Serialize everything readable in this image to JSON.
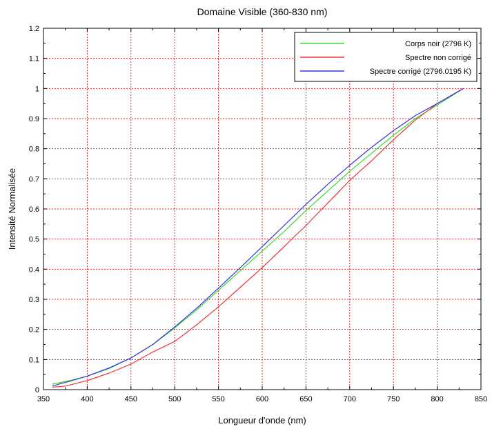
{
  "chart_data": {
    "type": "line",
    "title": "Domaine Visible (360-830 nm)",
    "xlabel": "Longueur d'onde (nm)",
    "ylabel": "Intensité Normalisée",
    "xlim": [
      350,
      850
    ],
    "ylim": [
      0,
      1.2
    ],
    "xticks": [
      "350",
      "400",
      "450",
      "500",
      "550",
      "600",
      "650",
      "700",
      "750",
      "800",
      "850"
    ],
    "yticks": [
      "0",
      "0.1",
      "0.2",
      "0.3",
      "0.4",
      "0.5",
      "0.6",
      "0.7",
      "0.8",
      "0.9",
      "1",
      "1.1",
      "1.2"
    ],
    "grid": true,
    "legend_position": "top-right",
    "series": [
      {
        "name": "Corps noir (2796 K)",
        "color": "#33dd33",
        "x": [
          360,
          380,
          400,
          425,
          450,
          475,
          500,
          525,
          550,
          575,
          600,
          625,
          650,
          675,
          700,
          725,
          750,
          775,
          800,
          830
        ],
        "y": [
          0.018,
          0.03,
          0.045,
          0.07,
          0.105,
          0.15,
          0.205,
          0.265,
          0.33,
          0.395,
          0.46,
          0.525,
          0.595,
          0.66,
          0.725,
          0.785,
          0.845,
          0.9,
          0.945,
          1.0
        ]
      },
      {
        "name": "Spectre non corrigé",
        "color": "#ee3333",
        "x": [
          360,
          375,
          400,
          425,
          450,
          475,
          500,
          525,
          550,
          575,
          600,
          625,
          650,
          675,
          700,
          725,
          750,
          775,
          800,
          830
        ],
        "y": [
          0.008,
          0.012,
          0.03,
          0.055,
          0.085,
          0.125,
          0.16,
          0.215,
          0.275,
          0.34,
          0.405,
          0.475,
          0.545,
          0.62,
          0.695,
          0.76,
          0.83,
          0.895,
          0.95,
          1.0
        ]
      },
      {
        "name": "Spectre corrigé (2796.0195 K)",
        "color": "#3333dd",
        "x": [
          360,
          380,
          400,
          425,
          450,
          475,
          500,
          525,
          550,
          575,
          600,
          625,
          650,
          675,
          700,
          725,
          750,
          775,
          800,
          830
        ],
        "y": [
          0.012,
          0.028,
          0.045,
          0.072,
          0.105,
          0.15,
          0.208,
          0.27,
          0.337,
          0.405,
          0.475,
          0.545,
          0.615,
          0.682,
          0.745,
          0.805,
          0.86,
          0.91,
          0.95,
          1.0
        ]
      }
    ]
  }
}
